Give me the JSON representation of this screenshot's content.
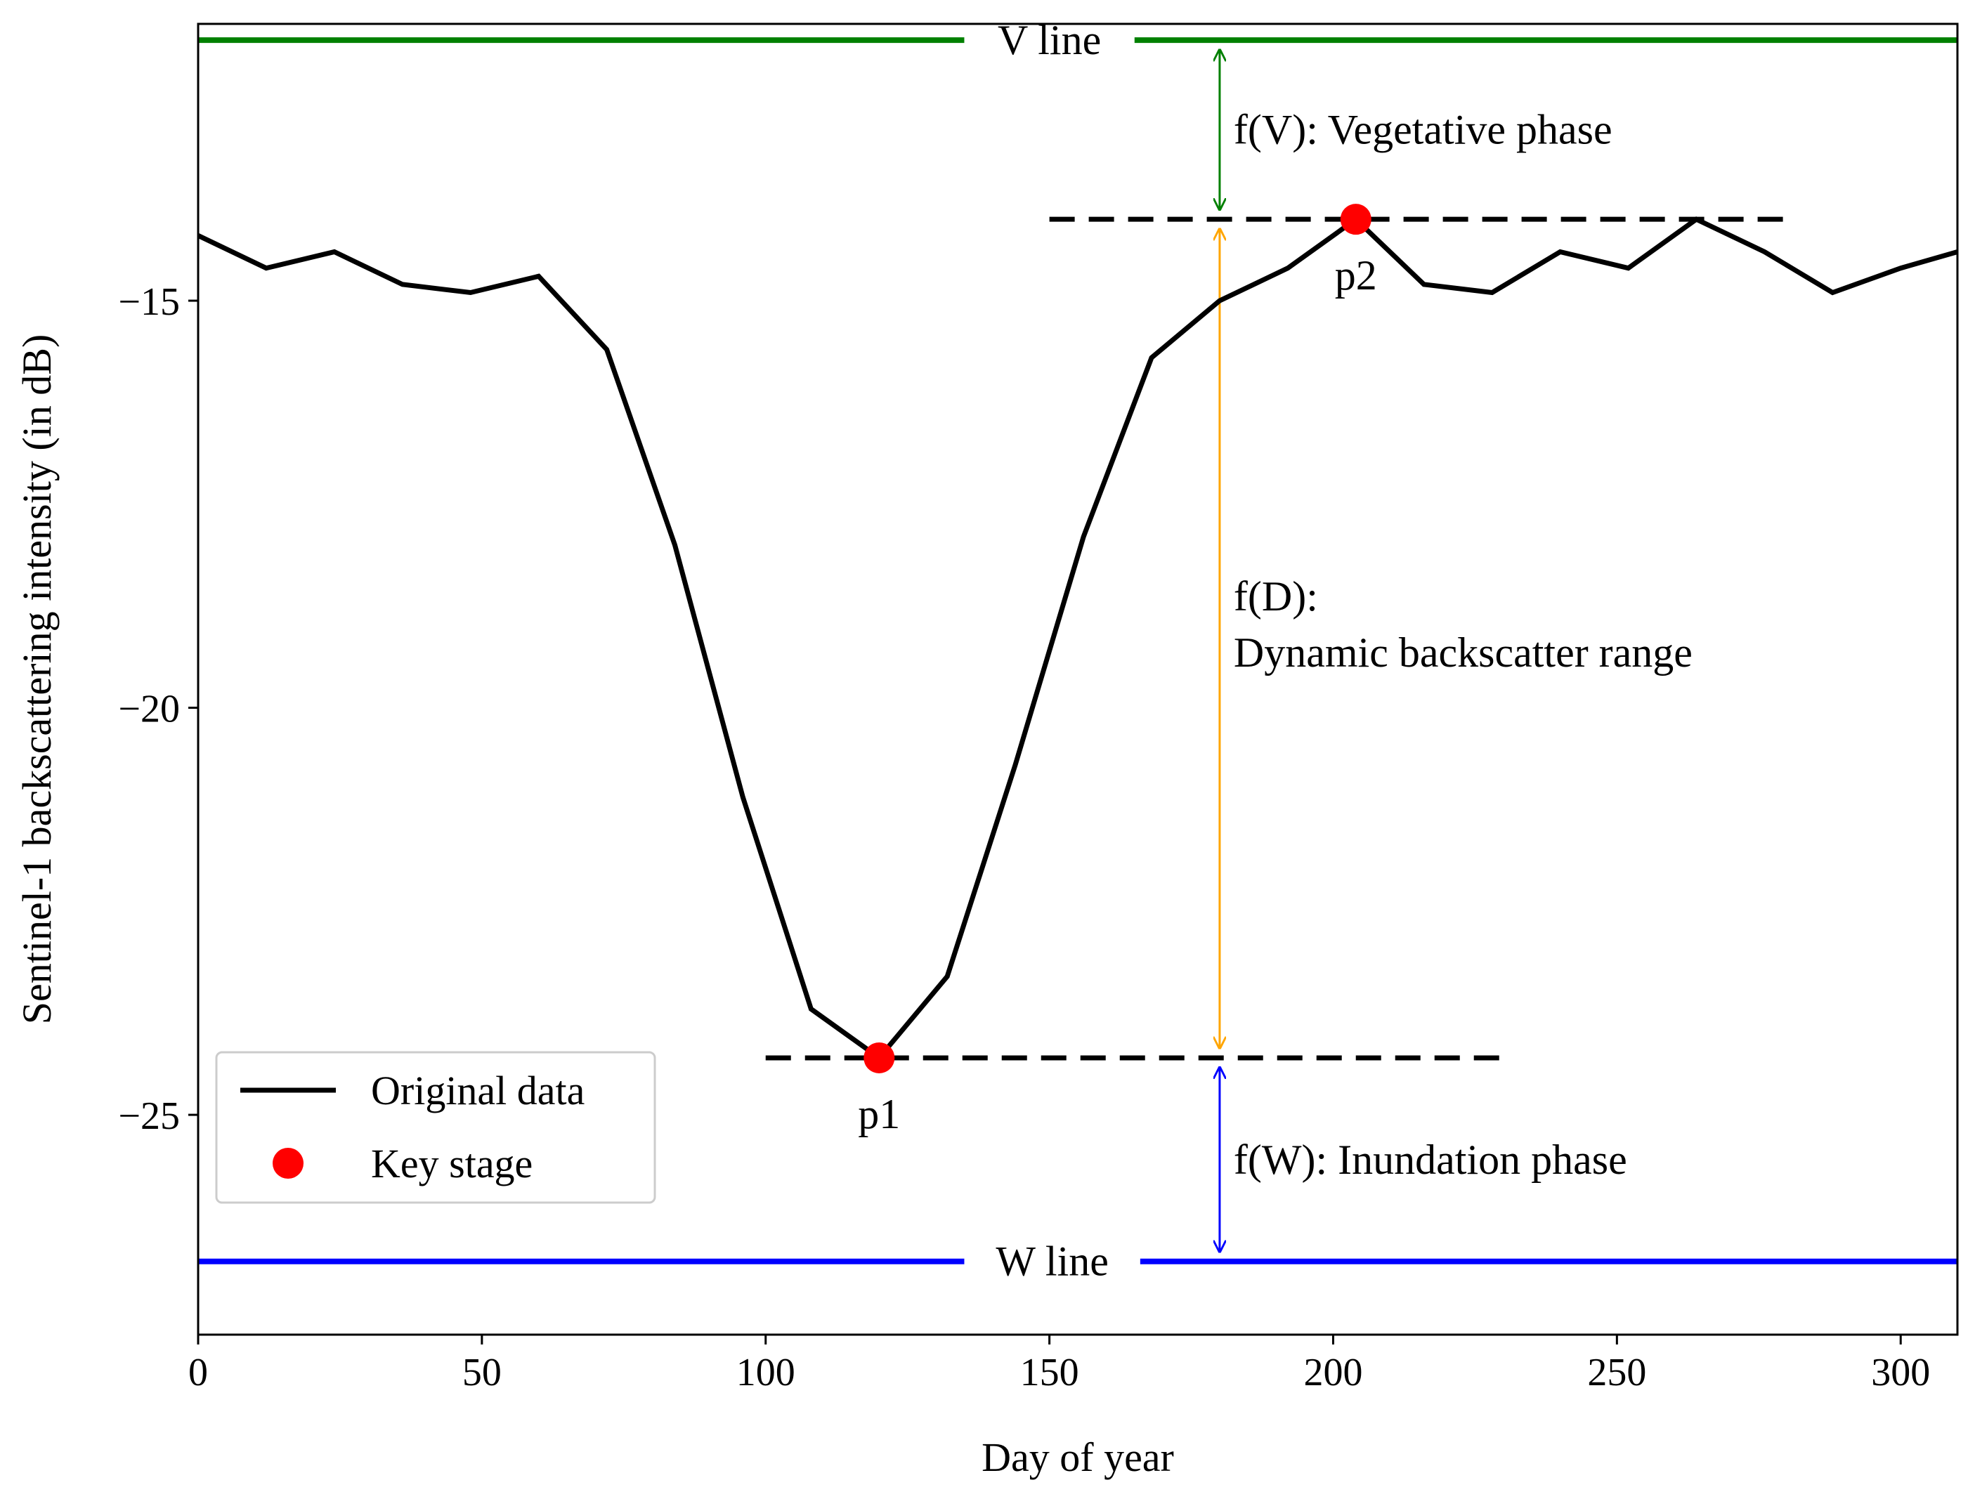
{
  "chart_data": {
    "type": "line",
    "xlabel": "Day of year",
    "ylabel": "Sentinel-1 backscattering intensity (in dB)",
    "xlim": [
      0,
      310
    ],
    "ylim": [
      -27.7,
      -11.6
    ],
    "xticks": [
      0,
      50,
      100,
      150,
      200,
      250,
      300
    ],
    "yticks": [
      -15,
      -20,
      -25
    ],
    "series": [
      {
        "name": "Original data",
        "color": "#000000",
        "x": [
          0,
          12,
          24,
          36,
          48,
          60,
          72,
          84,
          96,
          108,
          120,
          132,
          144,
          156,
          168,
          180,
          192,
          204,
          216,
          228,
          240,
          252,
          264,
          276,
          288,
          300,
          310
        ],
        "y": [
          -14.2,
          -14.6,
          -14.4,
          -14.8,
          -14.9,
          -14.7,
          -15.6,
          -18.0,
          -21.1,
          -23.7,
          -24.3,
          -23.3,
          -20.7,
          -17.9,
          -15.7,
          -15.0,
          -14.6,
          -14.0,
          -14.8,
          -14.9,
          -14.4,
          -14.6,
          -14.0,
          -14.4,
          -14.9,
          -14.6,
          -14.4
        ]
      }
    ],
    "key_stages": {
      "name": "Key stage",
      "color": "#ff0000",
      "points": [
        {
          "label": "p1",
          "x": 120,
          "y": -24.3
        },
        {
          "label": "p2",
          "x": 204,
          "y": -14.0
        }
      ]
    },
    "reference_lines": [
      {
        "label": "V line",
        "y": -11.8,
        "color": "#008000"
      },
      {
        "label": "W line",
        "y": -26.8,
        "color": "#0000ff"
      }
    ],
    "dashed_levels": [
      {
        "y": -14.0,
        "x_from": 150,
        "x_to": 280
      },
      {
        "y": -24.3,
        "x_from": 100,
        "x_to": 230
      }
    ],
    "arrows": [
      {
        "x": 180,
        "from": -11.8,
        "to": -14.0,
        "color": "#008000",
        "text": "f(V): Vegetative phase"
      },
      {
        "x": 180,
        "from": -14.0,
        "to": -24.3,
        "color": "#ffa500",
        "text_line1": "f(D):",
        "text_line2": "Dynamic backscatter range"
      },
      {
        "x": 180,
        "from": -24.3,
        "to": -26.8,
        "color": "#0000ff",
        "text": "f(W): Inundation phase"
      }
    ],
    "legend": {
      "placement": "lower-left",
      "entries": [
        "Original data",
        "Key stage"
      ]
    }
  }
}
